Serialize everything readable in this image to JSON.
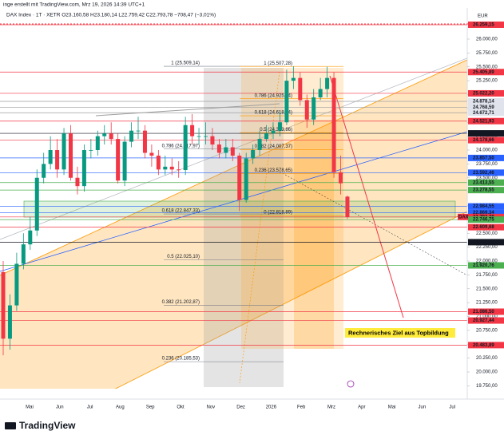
{
  "chart_data": {
    "type": "candlestick",
    "title": "inge erstellt mit TradingView.com, Mrz 19, 2026 14:39 UTC+1",
    "subtitle": "DAX Index · 1T · XETR  O23.160,58 H23.180,14 L22.759,42 C22.793,78 −708,47 (−3,01%)",
    "currency": "EUR",
    "brand": "TradingView",
    "annotation": "Rechnerisches Ziel aus Topbildung",
    "current_tag": "DAX",
    "up_color": "#089981",
    "down_color": "#f23645",
    "ylim": [
      19698,
      26561
    ],
    "yticks": [
      {
        "value": 19750,
        "label": "19.750,00"
      },
      {
        "value": 20000,
        "label": "20.000,00"
      },
      {
        "value": 20250,
        "label": "20.250,00"
      },
      {
        "value": 20500,
        "label": "20.500,00"
      },
      {
        "value": 20750,
        "label": "20.750,00"
      },
      {
        "value": 21000,
        "label": "21.000,00"
      },
      {
        "value": 21250,
        "label": "21.250,00"
      },
      {
        "value": 21500,
        "label": "21.500,00"
      },
      {
        "value": 21750,
        "label": "21.750,00"
      },
      {
        "value": 22000,
        "label": "22.000,00"
      },
      {
        "value": 22250,
        "label": "22.250,00"
      },
      {
        "value": 22500,
        "label": "22.500,00"
      },
      {
        "value": 22750,
        "label": "22.750,00"
      },
      {
        "value": 23000,
        "label": "23.000,00"
      },
      {
        "value": 23250,
        "label": "23.250,00"
      },
      {
        "value": 23500,
        "label": "23.500,00"
      },
      {
        "value": 23750,
        "label": "23.750,00"
      },
      {
        "value": 24000,
        "label": "24.000,00"
      },
      {
        "value": 24250,
        "label": "24.250,00"
      },
      {
        "value": 24500,
        "label": "24.500,00"
      },
      {
        "value": 24750,
        "label": "24.750,00"
      },
      {
        "value": 25000,
        "label": "25.000,00"
      },
      {
        "value": 25250,
        "label": "25.250,00"
      },
      {
        "value": 25500,
        "label": "25.500,00"
      },
      {
        "value": 25750,
        "label": "25.750,00"
      },
      {
        "value": 26000,
        "label": "26.000,00"
      }
    ],
    "months": [
      "Mai",
      "Jun",
      "Jul",
      "Aug",
      "Sep",
      "Okt",
      "Nov",
      "Dez",
      "2026",
      "Feb",
      "Mrz",
      "Apr",
      "Mai",
      "Jun",
      "Jul"
    ],
    "open": [
      21800,
      20600,
      21200,
      21950,
      22300,
      22550,
      23500,
      23750,
      24000,
      23650,
      24300,
      23500,
      23350,
      24000,
      24000,
      24250,
      24300,
      24200,
      23450,
      24150,
      24350,
      24350,
      23950,
      23900,
      23650,
      23700,
      23650,
      23640,
      24450,
      24250,
      24250,
      24250,
      24100,
      23950,
      24050,
      23900,
      23100,
      23850,
      24000,
      24200,
      24300,
      24350,
      24500,
      25250,
      25300,
      24900,
      24550,
      24950,
      25100,
      25300,
      23600,
      23160.58
    ],
    "high": [
      22000,
      21400,
      22150,
      22500,
      22800,
      23650,
      23950,
      24250,
      24200,
      24400,
      24450,
      23700,
      24100,
      24200,
      24350,
      24450,
      24500,
      24300,
      24250,
      24500,
      24600,
      24450,
      24100,
      24000,
      23900,
      23850,
      23800,
      24600,
      24650,
      24400,
      24500,
      24400,
      24200,
      24200,
      24200,
      23950,
      23950,
      24100,
      24350,
      24450,
      24500,
      24700,
      25450,
      25509.14,
      25400,
      25000,
      25100,
      25300,
      25500,
      25400,
      23900,
      23180.14
    ],
    "low": [
      20300,
      20400,
      21100,
      21850,
      22200,
      22450,
      23400,
      23650,
      23500,
      23550,
      23450,
      23200,
      23250,
      23850,
      23900,
      24100,
      24100,
      23400,
      23350,
      24050,
      24200,
      23850,
      23700,
      23550,
      23550,
      23550,
      23500,
      23550,
      24100,
      24100,
      24100,
      24000,
      23850,
      23850,
      23800,
      22900,
      23050,
      23750,
      23900,
      24150,
      24200,
      24250,
      24450,
      25100,
      24800,
      24400,
      24450,
      24900,
      24950,
      23500,
      23200,
      22759.42
    ],
    "close": [
      20600,
      21200,
      21950,
      22300,
      22550,
      23500,
      23750,
      24000,
      23650,
      24300,
      23500,
      23350,
      24000,
      24000,
      24250,
      24300,
      24200,
      23450,
      24150,
      24350,
      24350,
      23950,
      23900,
      23650,
      23700,
      23650,
      23640,
      24450,
      24250,
      24250,
      24250,
      24100,
      23950,
      24050,
      23900,
      23100,
      23850,
      24000,
      24200,
      24300,
      24350,
      24500,
      25250,
      25300,
      24900,
      24550,
      24950,
      25100,
      25300,
      23600,
      23400,
      22793.78
    ],
    "price_labels": [
      {
        "value": 26259.15,
        "label": "26.259,15",
        "color": "#f23645"
      },
      {
        "value": 25405.89,
        "label": "25.405,89",
        "color": "#f23645"
      },
      {
        "value": 25022.2,
        "label": "25.022,20",
        "color": "#f23645"
      },
      {
        "value": 24878.14,
        "label": "24.878,14",
        "color": "#e0e3eb"
      },
      {
        "value": 24768.59,
        "label": "24.768,59",
        "color": "#e0e3eb"
      },
      {
        "value": 24672.71,
        "label": "24.672,71",
        "color": "#e0e3eb"
      },
      {
        "value": 24521.93,
        "label": "24.521,93",
        "color": "#f23645"
      },
      {
        "value": 24300.94,
        "label": "24.300,94",
        "color": "#131722"
      },
      {
        "value": 24178.66,
        "label": "24.178,66",
        "color": "#f23645"
      },
      {
        "value": 23857.5,
        "label": "23.857,50",
        "color": "#2962ff"
      },
      {
        "value": 23592.46,
        "label": "23.592,46",
        "color": "#2962ff"
      },
      {
        "value": 23413.55,
        "label": "23.413,55",
        "color": "#4caf50"
      },
      {
        "value": 23278.55,
        "label": "23.278,55",
        "color": "#4caf50"
      },
      {
        "value": 22984.55,
        "label": "22.984,55",
        "color": "#2962ff"
      },
      {
        "value": 22869.34,
        "label": "22.869,34",
        "color": "#2962ff"
      },
      {
        "value": 22793.78,
        "label": "22.793,78",
        "color": "#f23645"
      },
      {
        "value": 22746.75,
        "label": "22.746,75",
        "color": "#4caf50"
      },
      {
        "value": 22609.68,
        "label": "22.609,68",
        "color": "#f23645"
      },
      {
        "value": 22339.91,
        "label": "22.339,91",
        "color": "#131722"
      },
      {
        "value": 21920.76,
        "label": "21.920,76",
        "color": "#4caf50"
      },
      {
        "value": 21086.5,
        "label": "21.086,50",
        "color": "#f23645"
      },
      {
        "value": 20927.44,
        "label": "20.927,44",
        "color": "#f23645"
      },
      {
        "value": 20483.89,
        "label": "20.483,89",
        "color": "#f23645"
      }
    ],
    "fib_left": {
      "color": "#787b86",
      "levels": [
        {
          "value": 25509.14,
          "label": "1 (25.509,14)"
        },
        {
          "value": 24017.97,
          "label": "0.786 (24.017,97)"
        },
        {
          "value": 22847.33,
          "label": "0.618 (22.847,33)"
        },
        {
          "value": 22025.1,
          "label": "0.5 (22.025,10)"
        },
        {
          "value": 21202.87,
          "label": "0.382 (21.202,87)"
        },
        {
          "value": 20185.53,
          "label": "0.236 (20.185,53)"
        }
      ]
    },
    "fib_right": {
      "color": "#ff9800",
      "levels": [
        {
          "value": 25507.28,
          "label": "1 (25.507,28)"
        },
        {
          "value": 24925.34,
          "label": "0.786 (24.925,34)"
        },
        {
          "value": 24618.34,
          "label": "0.618 (24.618,34)"
        },
        {
          "value": 24313.86,
          "label": "0.5 (24.313,86)"
        },
        {
          "value": 24007.37,
          "label": "0.382 (24.007,37)"
        },
        {
          "value": 23578.65,
          "label": "0.236 (23.578,65)"
        },
        {
          "value": 22818.89,
          "label": "0 (22.818,89)"
        }
      ]
    }
  }
}
